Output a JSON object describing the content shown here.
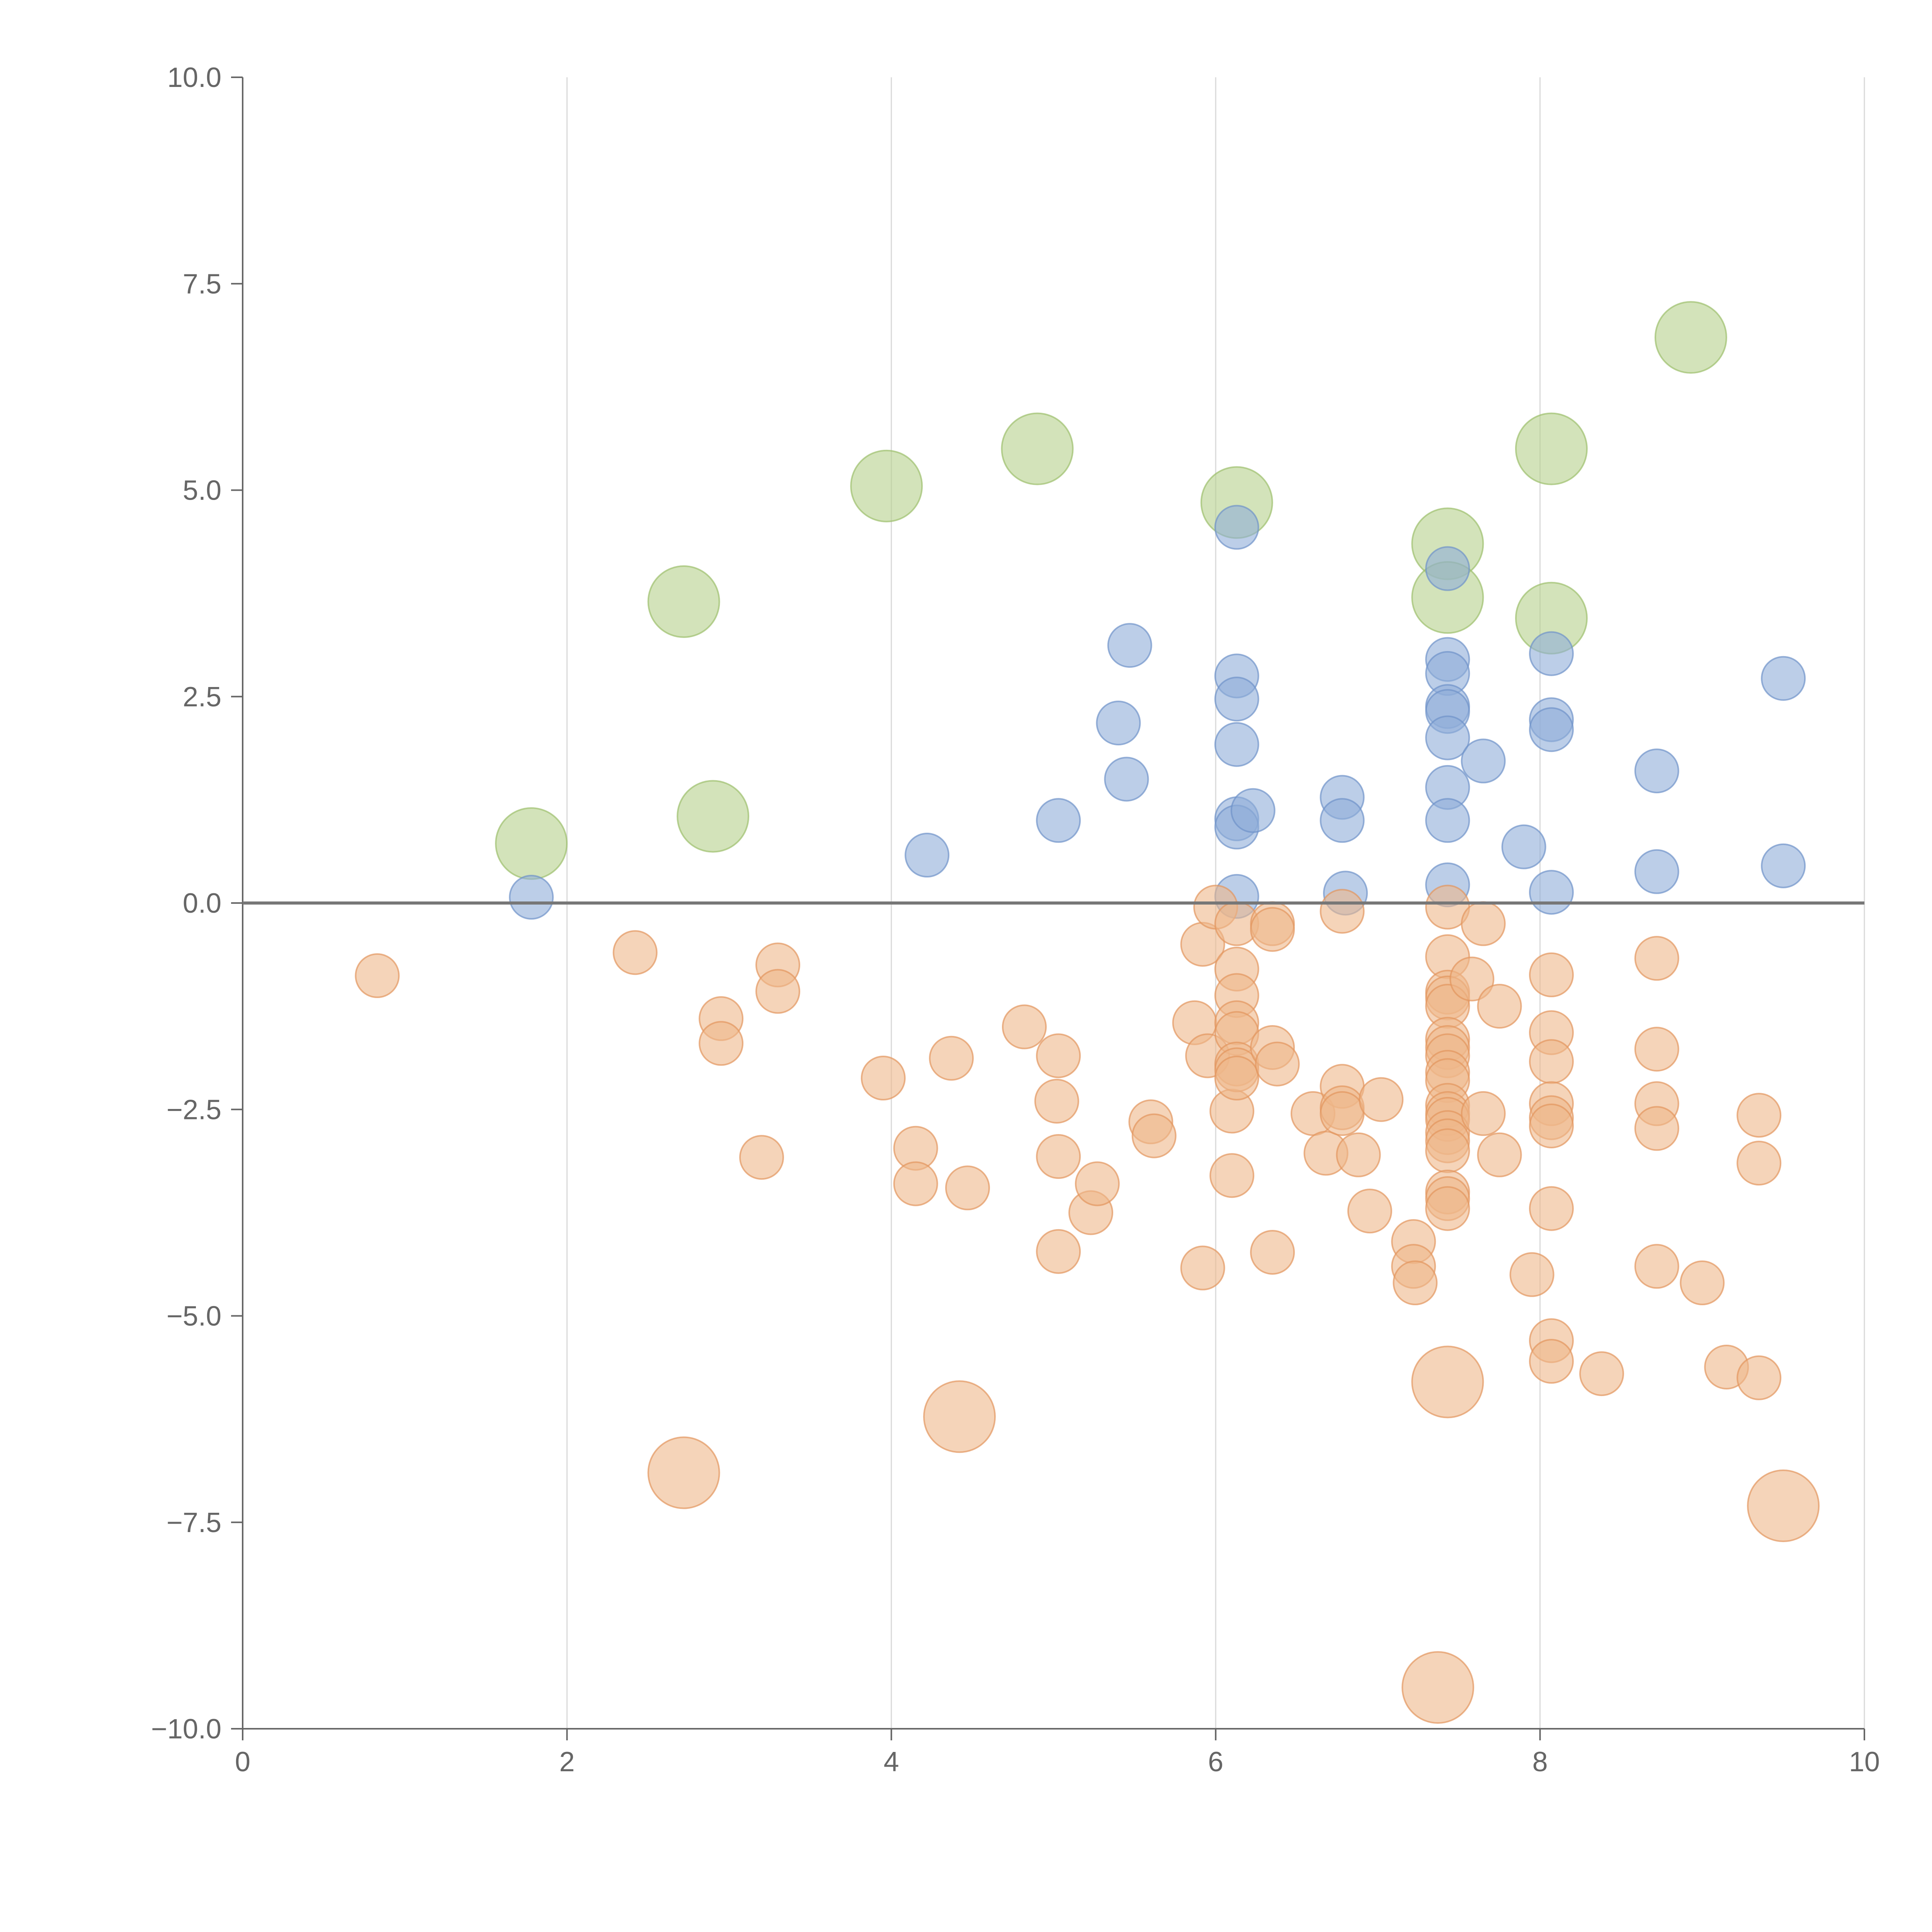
{
  "chart_data": {
    "type": "scatter",
    "title": "",
    "xlabel": "",
    "ylabel": "",
    "xlim": [
      0,
      10
    ],
    "ylim": [
      -10,
      10
    ],
    "x_ticks": [
      "0",
      "2",
      "4",
      "6",
      "8",
      "10"
    ],
    "y_ticks": [
      "−10.0",
      "−7.5",
      "−5.0",
      "−2.5",
      "0.0",
      "2.5",
      "5.0",
      "7.5",
      "10.0"
    ],
    "x_tick_values": [
      0,
      2,
      4,
      6,
      8,
      10
    ],
    "y_tick_values": [
      -10,
      -7.5,
      -5,
      -2.5,
      0,
      2.5,
      5,
      7.5,
      10
    ],
    "grid": "vertical",
    "reference_line_y": 0,
    "series": [
      {
        "name": "green",
        "color": "#b5d08c",
        "edge": "#9cbf6c",
        "size": "large",
        "points": [
          [
            1.78,
            0.72
          ],
          [
            2.72,
            3.65
          ],
          [
            2.9,
            1.05
          ],
          [
            3.97,
            5.05
          ],
          [
            4.9,
            5.5
          ],
          [
            6.13,
            4.85
          ],
          [
            7.43,
            4.35
          ],
          [
            7.43,
            3.7
          ],
          [
            8.07,
            5.5
          ],
          [
            8.07,
            3.45
          ],
          [
            8.93,
            6.85
          ]
        ]
      },
      {
        "name": "blue",
        "color": "#8fadd9",
        "edge": "#6f93c9",
        "size": "small",
        "points": [
          [
            1.78,
            0.07
          ],
          [
            4.22,
            0.58
          ],
          [
            5.03,
            1.0
          ],
          [
            5.4,
            2.18
          ],
          [
            5.45,
            1.5
          ],
          [
            5.47,
            3.12
          ],
          [
            6.13,
            4.55
          ],
          [
            6.13,
            2.75
          ],
          [
            6.13,
            2.47
          ],
          [
            6.13,
            1.92
          ],
          [
            6.13,
            1.02
          ],
          [
            6.13,
            0.92
          ],
          [
            6.13,
            0.08
          ],
          [
            6.23,
            1.12
          ],
          [
            6.78,
            1.28
          ],
          [
            6.78,
            1.0
          ],
          [
            6.8,
            0.12
          ],
          [
            7.43,
            4.05
          ],
          [
            7.43,
            2.95
          ],
          [
            7.43,
            2.78
          ],
          [
            7.43,
            2.38
          ],
          [
            7.43,
            2.32
          ],
          [
            7.43,
            2.0
          ],
          [
            7.43,
            1.4
          ],
          [
            7.43,
            1.0
          ],
          [
            7.43,
            0.22
          ],
          [
            7.65,
            1.72
          ],
          [
            7.9,
            0.68
          ],
          [
            8.07,
            3.02
          ],
          [
            8.07,
            2.22
          ],
          [
            8.07,
            2.1
          ],
          [
            8.07,
            0.13
          ],
          [
            8.72,
            1.6
          ],
          [
            8.72,
            0.38
          ],
          [
            9.5,
            2.72
          ],
          [
            9.5,
            0.45
          ]
        ]
      },
      {
        "name": "orange",
        "color": "#efb78b",
        "edge": "#e3965e",
        "size": "small",
        "points": [
          [
            0.83,
            -0.88
          ],
          [
            2.42,
            -0.6
          ],
          [
            2.95,
            -1.4
          ],
          [
            2.95,
            -1.7
          ],
          [
            3.2,
            -3.08
          ],
          [
            3.3,
            -0.75
          ],
          [
            3.3,
            -1.07
          ],
          [
            3.95,
            -2.12
          ],
          [
            4.15,
            -2.97
          ],
          [
            4.15,
            -3.4
          ],
          [
            4.37,
            -1.88
          ],
          [
            4.47,
            -3.45
          ],
          [
            4.82,
            -1.5
          ],
          [
            5.02,
            -2.4
          ],
          [
            5.03,
            -1.85
          ],
          [
            5.03,
            -3.07
          ],
          [
            5.03,
            -4.22
          ],
          [
            5.23,
            -3.75
          ],
          [
            5.27,
            -3.4
          ],
          [
            5.6,
            -2.65
          ],
          [
            5.62,
            -2.82
          ],
          [
            5.87,
            -1.45
          ],
          [
            5.92,
            -0.5
          ],
          [
            5.92,
            -4.42
          ],
          [
            5.95,
            -1.85
          ],
          [
            6.0,
            -0.05
          ],
          [
            6.1,
            -2.52
          ],
          [
            6.1,
            -3.3
          ],
          [
            6.13,
            -0.25
          ],
          [
            6.13,
            -0.8
          ],
          [
            6.13,
            -1.12
          ],
          [
            6.13,
            -1.45
          ],
          [
            6.13,
            -1.58
          ],
          [
            6.13,
            -1.95
          ],
          [
            6.13,
            -2.02
          ],
          [
            6.13,
            -2.12
          ],
          [
            6.35,
            -0.25
          ],
          [
            6.35,
            -0.32
          ],
          [
            6.35,
            -1.75
          ],
          [
            6.35,
            -4.23
          ],
          [
            6.38,
            -1.95
          ],
          [
            6.6,
            -2.55
          ],
          [
            6.68,
            -3.03
          ],
          [
            6.78,
            -0.1
          ],
          [
            6.78,
            -2.22
          ],
          [
            6.78,
            -2.48
          ],
          [
            6.78,
            -2.55
          ],
          [
            6.88,
            -3.05
          ],
          [
            6.95,
            -3.73
          ],
          [
            7.02,
            -2.38
          ],
          [
            7.22,
            -4.1
          ],
          [
            7.22,
            -4.4
          ],
          [
            7.23,
            -4.6
          ],
          [
            7.43,
            -0.05
          ],
          [
            7.43,
            -0.65
          ],
          [
            7.43,
            -1.08
          ],
          [
            7.43,
            -1.15
          ],
          [
            7.43,
            -1.25
          ],
          [
            7.43,
            -1.65
          ],
          [
            7.43,
            -1.75
          ],
          [
            7.43,
            -1.85
          ],
          [
            7.43,
            -2.05
          ],
          [
            7.43,
            -2.15
          ],
          [
            7.43,
            -2.45
          ],
          [
            7.43,
            -2.55
          ],
          [
            7.43,
            -2.62
          ],
          [
            7.43,
            -2.78
          ],
          [
            7.43,
            -2.88
          ],
          [
            7.43,
            -3.0
          ],
          [
            7.43,
            -3.5
          ],
          [
            7.43,
            -3.58
          ],
          [
            7.43,
            -3.7
          ],
          [
            7.58,
            -0.92
          ],
          [
            7.65,
            -0.25
          ],
          [
            7.65,
            -2.55
          ],
          [
            7.75,
            -1.25
          ],
          [
            7.75,
            -3.05
          ],
          [
            7.95,
            -4.5
          ],
          [
            8.07,
            -0.87
          ],
          [
            8.07,
            -1.57
          ],
          [
            8.07,
            -1.92
          ],
          [
            8.07,
            -2.43
          ],
          [
            8.07,
            -2.6
          ],
          [
            8.07,
            -2.7
          ],
          [
            8.07,
            -3.7
          ],
          [
            8.07,
            -5.3
          ],
          [
            8.07,
            -5.55
          ],
          [
            8.38,
            -5.7
          ],
          [
            8.72,
            -0.67
          ],
          [
            8.72,
            -1.77
          ],
          [
            8.72,
            -2.43
          ],
          [
            8.72,
            -2.73
          ],
          [
            8.72,
            -4.4
          ],
          [
            9.0,
            -4.6
          ],
          [
            9.15,
            -5.62
          ],
          [
            9.35,
            -2.57
          ],
          [
            9.35,
            -3.15
          ],
          [
            9.35,
            -5.75
          ]
        ]
      },
      {
        "name": "orange-large",
        "color": "#efb78b",
        "edge": "#e3965e",
        "size": "large",
        "points": [
          [
            2.72,
            -6.9
          ],
          [
            4.42,
            -6.22
          ],
          [
            7.37,
            -9.5
          ],
          [
            7.43,
            -5.8
          ],
          [
            9.5,
            -7.3
          ]
        ]
      }
    ]
  }
}
